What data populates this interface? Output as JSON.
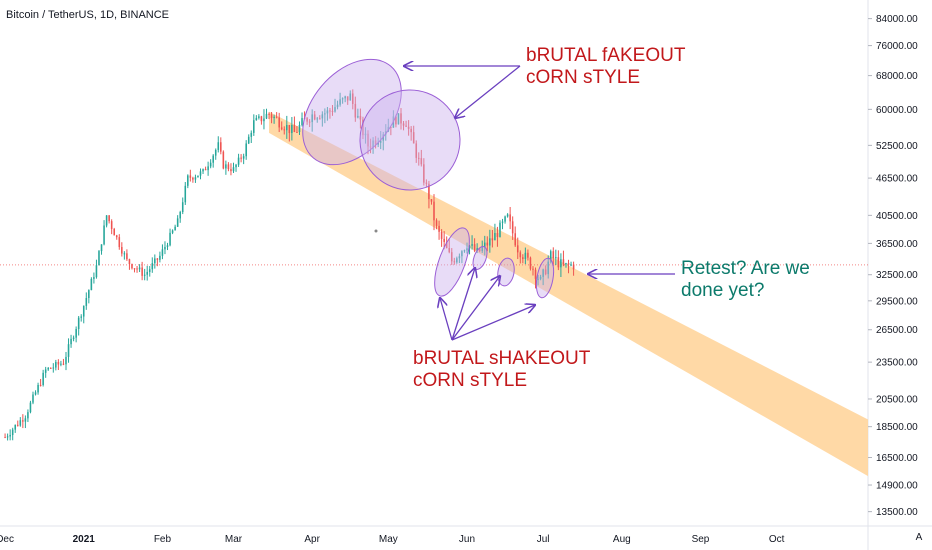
{
  "title": "Bitcoin / TetherUS, 1D, BINANCE",
  "annotations": {
    "fakeout": "bRUTAL fAKEOUT\ncORN sTYLE",
    "shakeout": "bRUTAL sHAKEOUT\ncORN sTYLE",
    "retest": "Retest? Are we\ndone yet?"
  },
  "auto_scale_label": "A",
  "colors": {
    "up": "#26a69a",
    "down": "#ef5350",
    "band": "#ffd59c",
    "annotation": "#6a3fbf",
    "ellipse_fill": "#cbb2ee",
    "ellipse_stroke": "#9b5fd6",
    "current_price_line": "#ef5350"
  },
  "chart_data": {
    "type": "candlestick",
    "title": "Bitcoin / TetherUS, 1D, BINANCE",
    "y_scale": "log",
    "ylim": [
      12800,
      90000
    ],
    "y_ticks": [
      13500,
      14900,
      16500,
      18500,
      20500,
      23500,
      26500,
      29500,
      32500,
      36500,
      40500,
      46500,
      52500,
      60000,
      68000,
      76000,
      84000
    ],
    "y_tick_labels": [
      "13500.00",
      "14900.00",
      "16500.00",
      "18500.00",
      "20500.00",
      "23500.00",
      "26500.00",
      "29500.00",
      "32500.00",
      "36500.00",
      "40500.00",
      "46500.00",
      "52500.00",
      "60000.00",
      "68000.00",
      "76000.00",
      "84000.00"
    ],
    "x_ticks": [
      "Dec",
      "2021",
      "Feb",
      "Mar",
      "Apr",
      "May",
      "Jun",
      "Jul",
      "Aug",
      "Sep",
      "Oct"
    ],
    "x_tick_days": [
      0,
      31,
      62,
      90,
      121,
      151,
      182,
      212,
      243,
      274,
      304
    ],
    "x_start_day": -2,
    "x_end_day": 340,
    "last_close": 33700,
    "prices": [
      [
        0,
        17800
      ],
      [
        8,
        19300
      ],
      [
        16,
        22800
      ],
      [
        23,
        23500
      ],
      [
        31,
        29000
      ],
      [
        36,
        33500
      ],
      [
        40,
        40500
      ],
      [
        48,
        34200
      ],
      [
        55,
        32500
      ],
      [
        61,
        34800
      ],
      [
        68,
        39500
      ],
      [
        72,
        46500
      ],
      [
        78,
        47500
      ],
      [
        84,
        52500
      ],
      [
        86,
        48800
      ],
      [
        90,
        48000
      ],
      [
        94,
        51000
      ],
      [
        98,
        57200
      ],
      [
        104,
        59000
      ],
      [
        108,
        57400
      ],
      [
        114,
        55000
      ],
      [
        118,
        57600
      ],
      [
        121,
        58800
      ],
      [
        127,
        59300
      ],
      [
        132,
        61500
      ],
      [
        136,
        63000
      ],
      [
        138,
        59500
      ],
      [
        143,
        52500
      ],
      [
        147,
        54000
      ],
      [
        150,
        56000
      ],
      [
        154,
        58000
      ],
      [
        158,
        57300
      ],
      [
        163,
        49500
      ],
      [
        167,
        43500
      ],
      [
        170,
        38500
      ],
      [
        176,
        34200
      ],
      [
        182,
        36500
      ],
      [
        186,
        35200
      ],
      [
        192,
        37100
      ],
      [
        198,
        40100
      ],
      [
        202,
        35900
      ],
      [
        207,
        33800
      ],
      [
        211,
        31700
      ],
      [
        215,
        34800
      ],
      [
        220,
        33500
      ],
      [
        224,
        33700
      ]
    ],
    "band": {
      "upper": [
        [
          104,
          59500
        ],
        [
          340,
          19000
        ]
      ],
      "lower": [
        [
          104,
          55000
        ],
        [
          340,
          15400
        ]
      ]
    }
  }
}
